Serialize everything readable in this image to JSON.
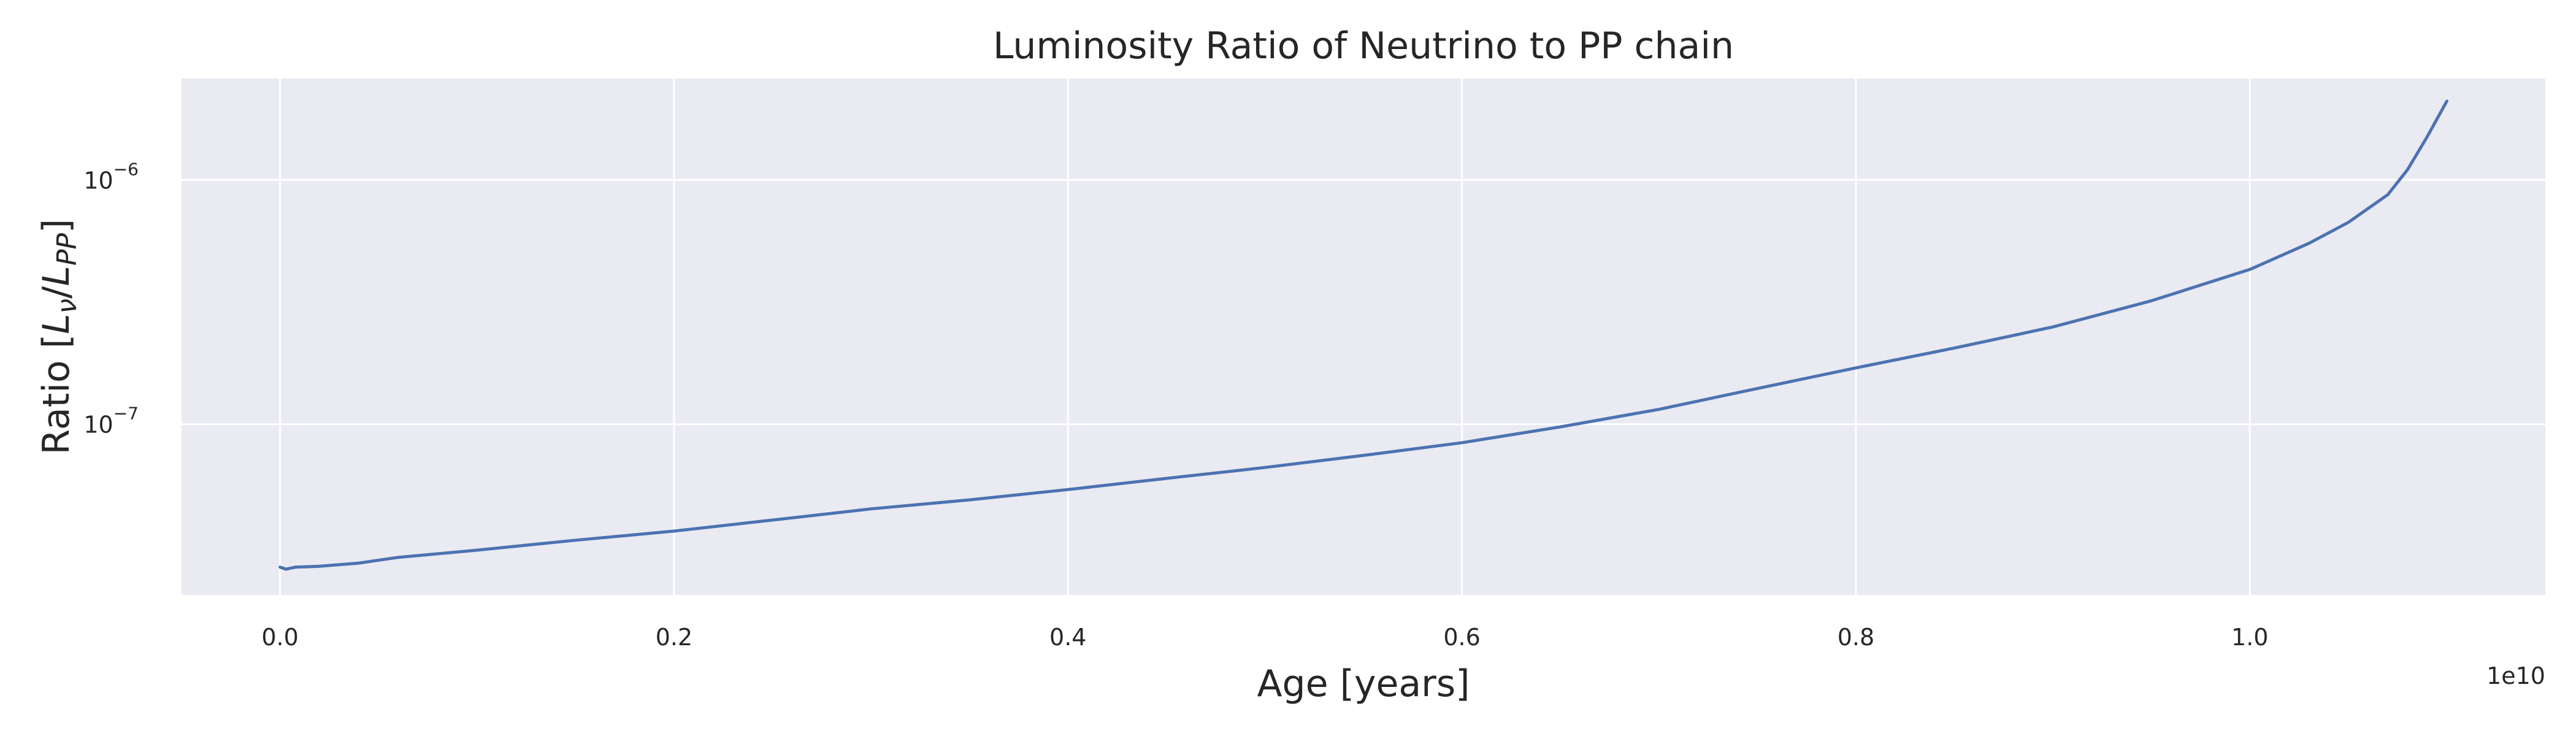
{
  "chart_data": {
    "type": "line",
    "title": "Luminosity Ratio of Neutrino to PP chain",
    "xlabel": "Age [years]",
    "ylabel": "Ratio [L_ν/L_PP]",
    "x_offset_label": "1e10",
    "xscale": "linear",
    "yscale": "log",
    "xlim": [
      -0.05,
      1.15
    ],
    "ylim": [
      2e-08,
      2.6e-06
    ],
    "grid": true,
    "x_ticks": [
      0.0,
      0.2,
      0.4,
      0.6,
      0.8,
      1.0
    ],
    "x_tick_labels": [
      "0.0",
      "0.2",
      "0.4",
      "0.6",
      "0.8",
      "1.0"
    ],
    "y_ticks": [
      1e-07,
      1e-06
    ],
    "y_tick_labels": [
      {
        "base": "10",
        "exp": "−7"
      },
      {
        "base": "10",
        "exp": "−6"
      }
    ],
    "series": [
      {
        "color": "#4c72b0",
        "x": [
          0.0,
          0.003,
          0.008,
          0.02,
          0.04,
          0.06,
          0.1,
          0.15,
          0.2,
          0.25,
          0.3,
          0.35,
          0.4,
          0.45,
          0.5,
          0.55,
          0.6,
          0.65,
          0.7,
          0.75,
          0.8,
          0.85,
          0.9,
          0.95,
          1.0,
          1.03,
          1.05,
          1.07,
          1.08,
          1.09,
          1.1
        ],
        "y": [
          2.6e-08,
          2.55e-08,
          2.6e-08,
          2.62e-08,
          2.7e-08,
          2.85e-08,
          3.05e-08,
          3.35e-08,
          3.65e-08,
          4.05e-08,
          4.5e-08,
          4.9e-08,
          5.4e-08,
          6e-08,
          6.65e-08,
          7.45e-08,
          8.4e-08,
          9.75e-08,
          1.15e-07,
          1.4e-07,
          1.7e-07,
          2.05e-07,
          2.5e-07,
          3.2e-07,
          4.3e-07,
          5.5e-07,
          6.7e-07,
          8.7e-07,
          1.1e-06,
          1.5e-06,
          2.1e-06
        ]
      }
    ]
  }
}
